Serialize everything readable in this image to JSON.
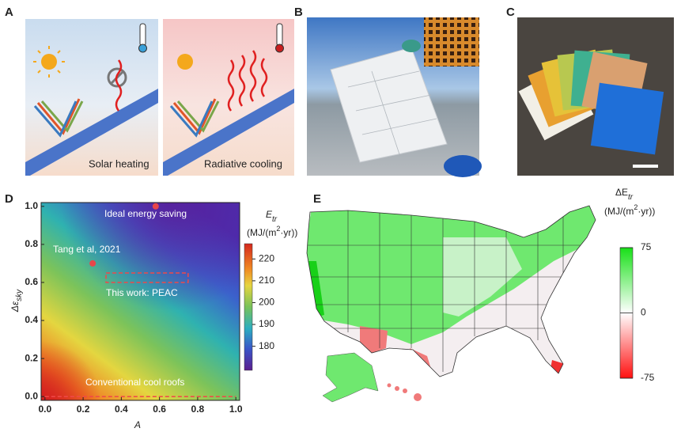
{
  "panel_labels": [
    "A",
    "B",
    "C",
    "D",
    "E"
  ],
  "panel_a": {
    "captions": [
      "Solar heating",
      "Radiative cooling"
    ]
  },
  "chart_data": [
    {
      "type": "heatmap",
      "x_label": "A",
      "y_label": {
        "text": "Δε",
        "sub": "sky"
      },
      "xlim": [
        -0.02,
        1.02
      ],
      "ylim": [
        -0.02,
        1.02
      ],
      "xticks": [
        {
          "value": 0,
          "label": "0.0"
        },
        0.2,
        0.4,
        0.6,
        0.8,
        {
          "value": 1,
          "label": "1.0"
        }
      ],
      "yticks": [
        {
          "value": 0,
          "label": "0.0"
        },
        0.2,
        0.4,
        0.6,
        0.8,
        {
          "value": 1,
          "label": "1.0"
        }
      ],
      "points": [
        {
          "x": 0.25,
          "y": 0.7,
          "color": "#e8464a"
        },
        {
          "x": 0.58,
          "y": 1,
          "color": "#e8464a"
        }
      ],
      "peac_region": {
        "x": [
          0.32,
          0.75
        ],
        "y": [
          0.6,
          0.65
        ]
      },
      "cool_roof_region": {
        "x": [
          0,
          1
        ],
        "y": [
          0,
          0
        ]
      },
      "annotations": [
        "Ideal energy saving",
        "Tang et al, 2021",
        "This work: PEAC",
        "Conventional cool roofs"
      ],
      "colorbar": {
        "title": {
          "main": "E",
          "sub": "tr",
          "unit_pre": "(MJ/(m",
          "unit_sup": "2",
          "unit_post": "·yr))"
        },
        "lim": [
          169,
          227
        ],
        "ticks": [
          180,
          190,
          200,
          210,
          220
        ]
      }
    },
    {
      "type": "choropleth-map",
      "colorbar": {
        "title": {
          "main": "ΔE",
          "sub": "tr",
          "unit_pre": "(MJ/(m",
          "unit_sup": "2",
          "unit_post": "·yr))"
        },
        "lim": [
          -75,
          75
        ],
        "ticks": [
          75,
          0,
          -75
        ]
      }
    }
  ]
}
